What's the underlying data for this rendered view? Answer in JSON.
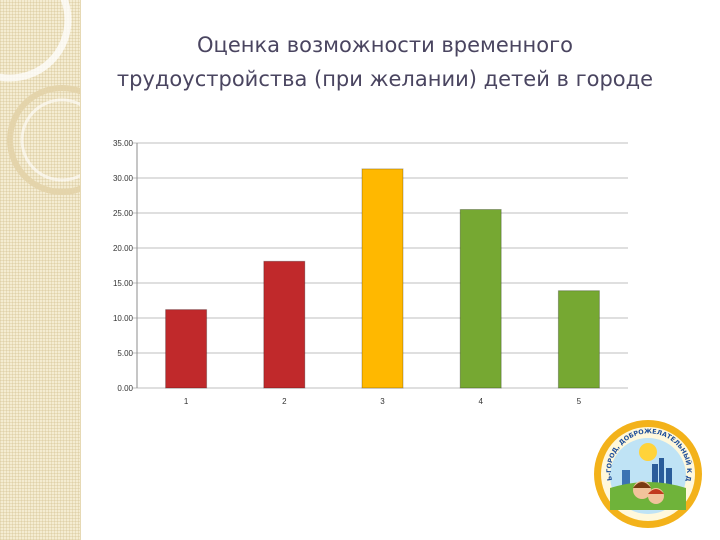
{
  "slide": {
    "title_line1": "Оценка возможности временного",
    "title_line2": "трудоустройства (при желании) детей в городе"
  },
  "logo": {
    "text": "ПЕРМЬ-ГОРОД, ДОБРОЖЕЛАТЕЛЬНЫЙ К ДЕТЯМ"
  },
  "colors": {
    "red": "#c0292b",
    "yellow": "#ffb800",
    "green": "#76a832",
    "grid": "#bfbfbf",
    "title": "#4a4560"
  },
  "chart_data": {
    "type": "bar",
    "categories": [
      "1",
      "2",
      "3",
      "4",
      "5"
    ],
    "values": [
      11.2,
      18.1,
      31.3,
      25.5,
      13.9
    ],
    "bar_colors": [
      "#c0292b",
      "#c0292b",
      "#ffb800",
      "#76a832",
      "#76a832"
    ],
    "ylim": [
      0,
      35
    ],
    "yticks": [
      "0.00",
      "5.00",
      "10.00",
      "15.00",
      "20.00",
      "25.00",
      "30.00",
      "35.00"
    ],
    "ytick_values": [
      0,
      5,
      10,
      15,
      20,
      25,
      30,
      35
    ],
    "grid": true,
    "legend": false
  }
}
